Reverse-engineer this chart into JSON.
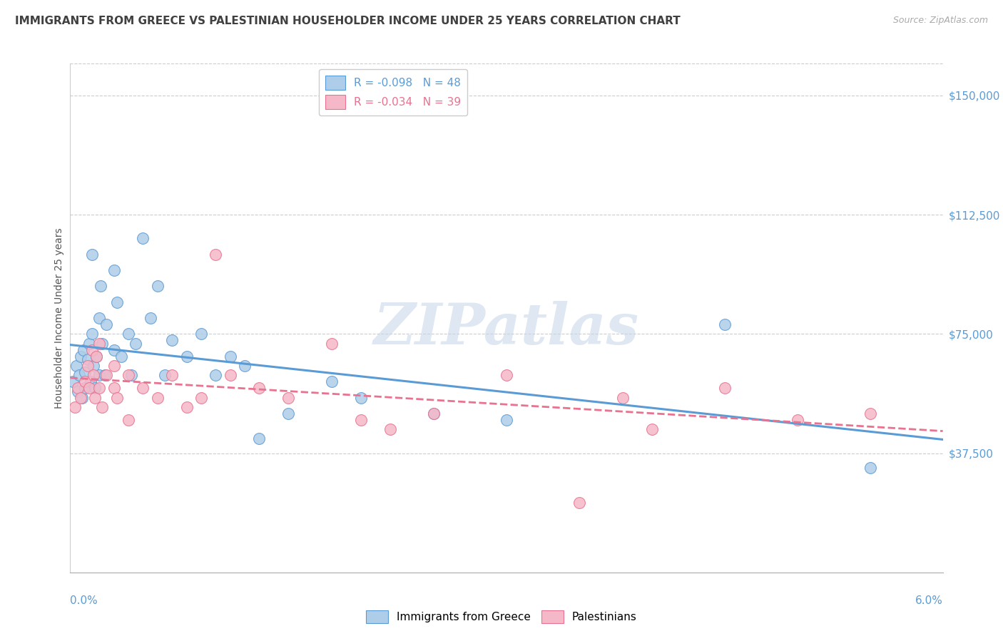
{
  "title": "IMMIGRANTS FROM GREECE VS PALESTINIAN HOUSEHOLDER INCOME UNDER 25 YEARS CORRELATION CHART",
  "source": "Source: ZipAtlas.com",
  "ylabel": "Householder Income Under 25 years",
  "legend_entry1_r": "R = -0.098",
  "legend_entry1_n": "N = 48",
  "legend_entry2_r": "R = -0.034",
  "legend_entry2_n": "N = 39",
  "legend_label1": "Immigrants from Greece",
  "legend_label2": "Palestinians",
  "watermark": "ZIPatlas",
  "color_blue_fill": "#aecde8",
  "color_blue_edge": "#5b9bd5",
  "color_pink_fill": "#f5b8c8",
  "color_pink_edge": "#e8728f",
  "color_line_blue": "#5b9bd5",
  "color_line_pink": "#e8728f",
  "title_color": "#404040",
  "source_color": "#aaaaaa",
  "axis_label_color": "#5b9bd5",
  "ytick_values": [
    37500,
    75000,
    112500,
    150000
  ],
  "ytick_labels": [
    "$37,500",
    "$75,000",
    "$112,500",
    "$150,000"
  ],
  "xmin": 0.0,
  "xmax": 0.06,
  "ymin": 0,
  "ymax": 160000,
  "greece_x": [
    0.0002,
    0.0004,
    0.0005,
    0.0006,
    0.0007,
    0.0008,
    0.0009,
    0.001,
    0.001,
    0.0012,
    0.0013,
    0.0014,
    0.0015,
    0.0015,
    0.0016,
    0.0017,
    0.0018,
    0.002,
    0.002,
    0.0021,
    0.0022,
    0.0024,
    0.0025,
    0.003,
    0.003,
    0.0032,
    0.0035,
    0.004,
    0.0042,
    0.0045,
    0.005,
    0.0055,
    0.006,
    0.0065,
    0.007,
    0.008,
    0.009,
    0.01,
    0.011,
    0.012,
    0.013,
    0.015,
    0.018,
    0.02,
    0.025,
    0.03,
    0.045,
    0.055
  ],
  "greece_y": [
    60000,
    65000,
    57000,
    62000,
    68000,
    55000,
    70000,
    58000,
    63000,
    67000,
    72000,
    60000,
    100000,
    75000,
    65000,
    58000,
    68000,
    80000,
    62000,
    90000,
    72000,
    62000,
    78000,
    95000,
    70000,
    85000,
    68000,
    75000,
    62000,
    72000,
    105000,
    80000,
    90000,
    62000,
    73000,
    68000,
    75000,
    62000,
    68000,
    65000,
    42000,
    50000,
    60000,
    55000,
    50000,
    48000,
    78000,
    33000
  ],
  "pal_x": [
    0.0003,
    0.0005,
    0.0007,
    0.001,
    0.0012,
    0.0013,
    0.0015,
    0.0016,
    0.0017,
    0.0018,
    0.002,
    0.002,
    0.0022,
    0.0025,
    0.003,
    0.003,
    0.0032,
    0.004,
    0.004,
    0.005,
    0.006,
    0.007,
    0.008,
    0.009,
    0.01,
    0.011,
    0.013,
    0.015,
    0.018,
    0.02,
    0.022,
    0.025,
    0.03,
    0.035,
    0.038,
    0.04,
    0.045,
    0.05,
    0.055
  ],
  "pal_y": [
    52000,
    58000,
    55000,
    60000,
    65000,
    58000,
    70000,
    62000,
    55000,
    68000,
    72000,
    58000,
    52000,
    62000,
    58000,
    65000,
    55000,
    62000,
    48000,
    58000,
    55000,
    62000,
    52000,
    55000,
    100000,
    62000,
    58000,
    55000,
    72000,
    48000,
    45000,
    50000,
    62000,
    22000,
    55000,
    45000,
    58000,
    48000,
    50000
  ]
}
